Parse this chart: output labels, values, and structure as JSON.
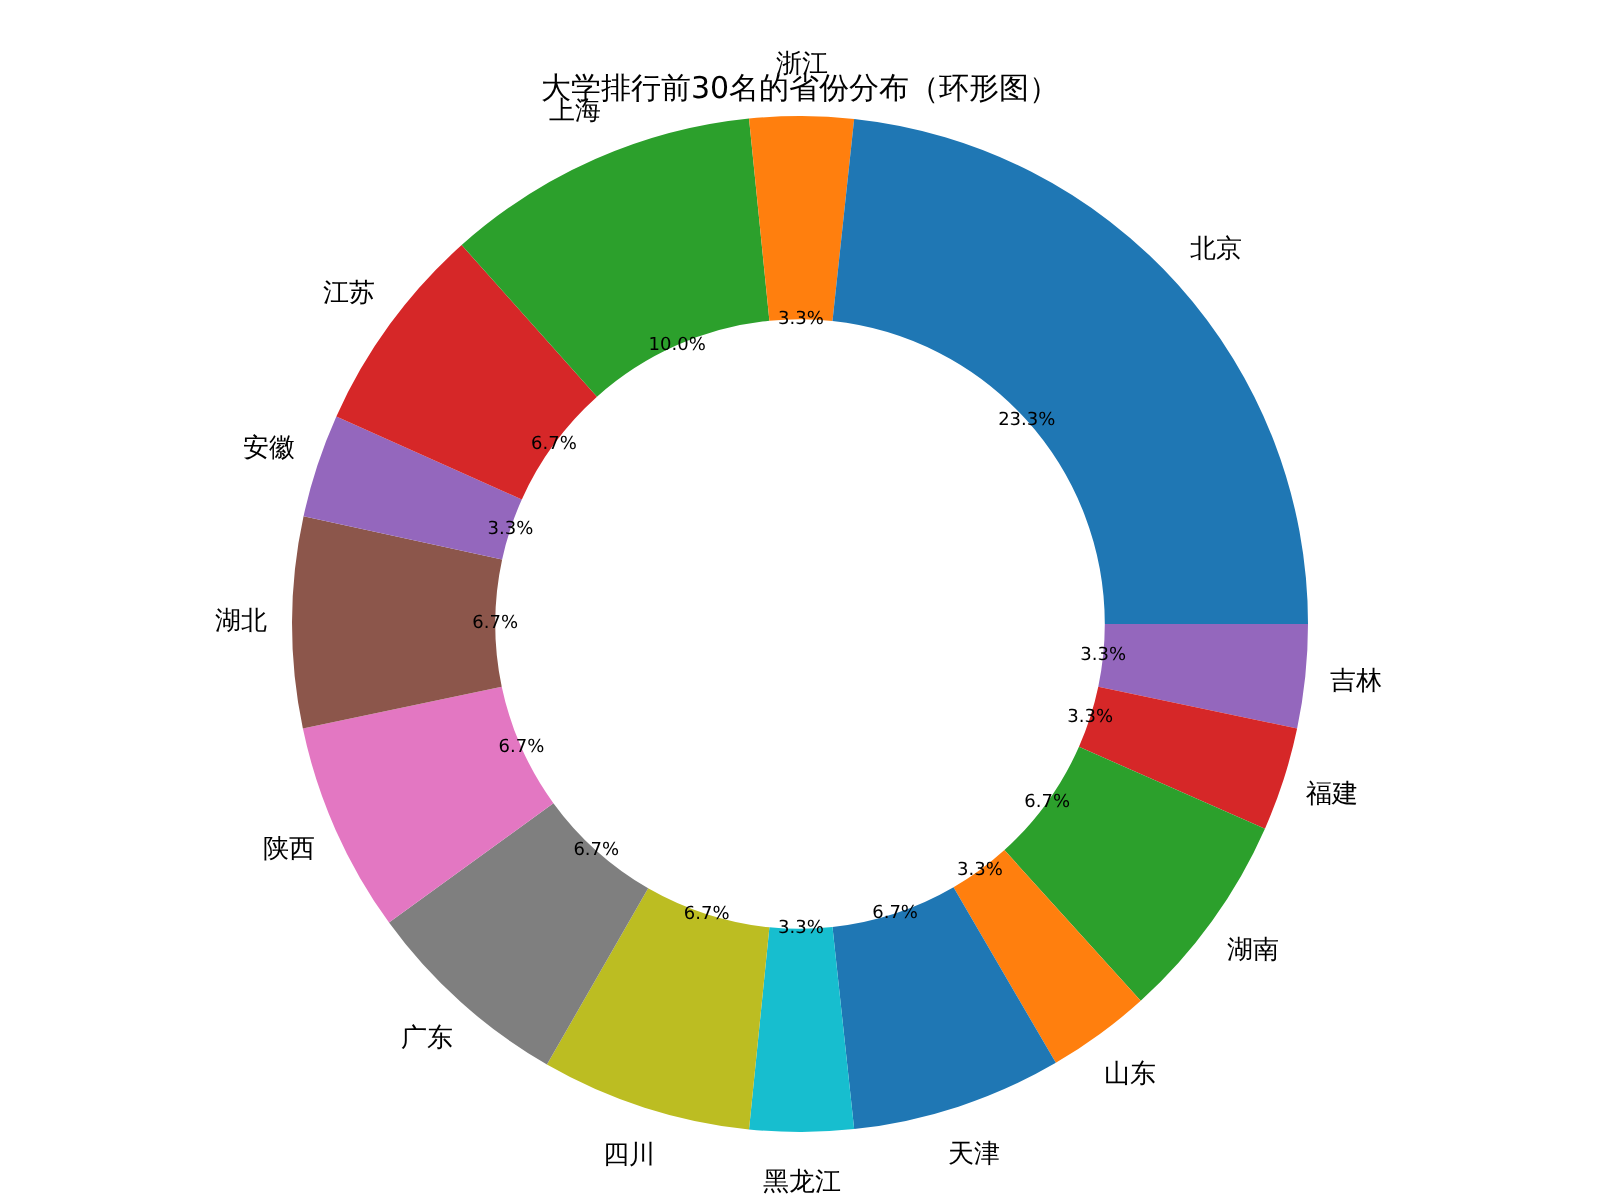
{
  "chart_data": {
    "type": "donut",
    "title": "大学排行前30名的省份分布（环形图）",
    "categories": [
      "北京",
      "浙江",
      "上海",
      "江苏",
      "安徽",
      "湖北",
      "陕西",
      "广东",
      "四川",
      "黑龙江",
      "天津",
      "山东",
      "湖南",
      "福建",
      "吉林"
    ],
    "values": [
      23.3,
      3.3,
      10.0,
      6.7,
      3.3,
      6.7,
      6.7,
      6.7,
      6.7,
      3.3,
      6.7,
      3.3,
      6.7,
      3.3,
      3.3
    ],
    "colors": [
      "#1f77b4",
      "#ff7f0e",
      "#2ca02c",
      "#d62728",
      "#9467bd",
      "#8c564b",
      "#e377c2",
      "#7f7f7f",
      "#bcbd22",
      "#17becf",
      "#1f77b4",
      "#ff7f0e",
      "#2ca02c",
      "#d62728",
      "#9467bd"
    ],
    "value_labels": [
      "23.3%",
      "3.3%",
      "10.0%",
      "6.7%",
      "3.3%",
      "6.7%",
      "6.7%",
      "6.7%",
      "6.7%",
      "3.3%",
      "6.7%",
      "3.3%",
      "6.7%",
      "3.3%",
      "3.3%"
    ],
    "legend": false
  }
}
